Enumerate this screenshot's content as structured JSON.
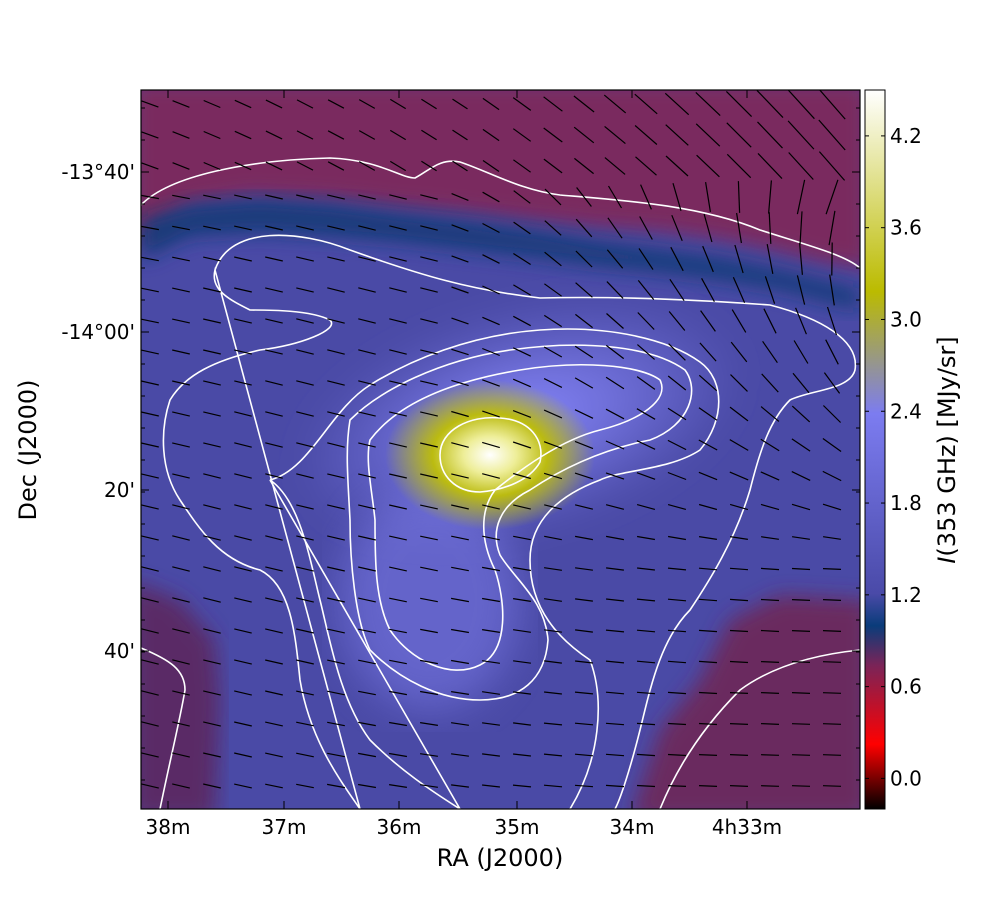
{
  "chart_data": {
    "type": "heatmap",
    "title": "",
    "xlabel": "RA (J2000)",
    "ylabel": "Dec (J2000)",
    "x_ticks": [
      "38m",
      "37m",
      "36m",
      "35m",
      "34m",
      "4h33m"
    ],
    "y_ticks": [
      "-13°40'",
      "-14°00'",
      "20'",
      "40'"
    ],
    "colorbar": {
      "label": "I(353 GHz) [MJy/sr]",
      "label_symbol": "I",
      "label_rest": "(353 GHz) [MJy/sr]",
      "ticks": [
        "0.0",
        "0.6",
        "1.2",
        "1.8",
        "2.4",
        "3.0",
        "3.6",
        "4.2"
      ],
      "range": [
        -0.2,
        4.5
      ],
      "colors": [
        "#000000",
        "#ff0000",
        "#7a2458",
        "#0a3c7a",
        "#4a4aa8",
        "#7c7cf0",
        "#bbbb00",
        "#ffffff"
      ]
    },
    "peak": {
      "ra": "4h35m10s",
      "dec": "-14°15'",
      "value": 4.5
    },
    "contours": true,
    "polarization_vectors": true,
    "grid": false
  }
}
